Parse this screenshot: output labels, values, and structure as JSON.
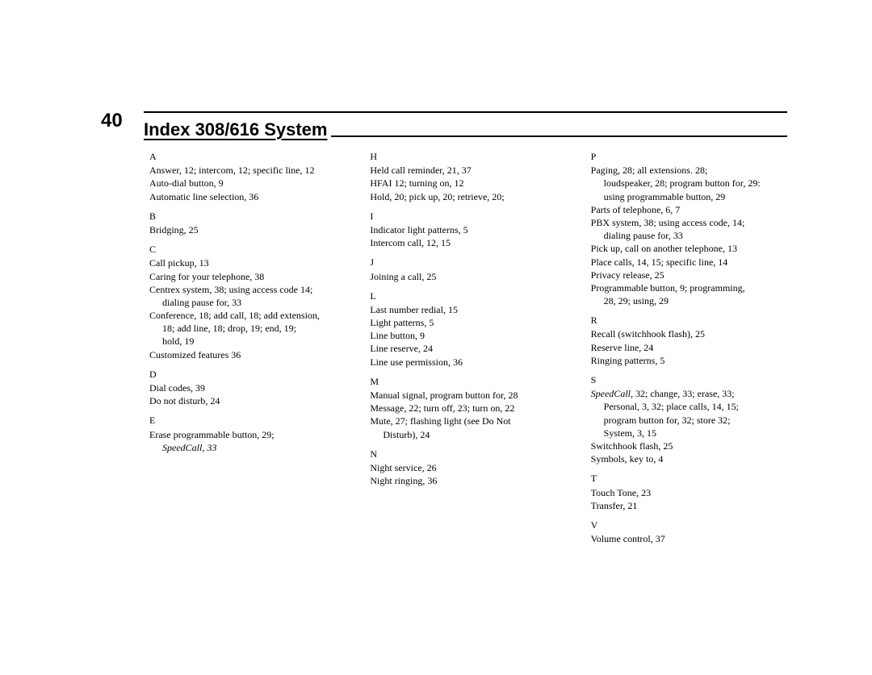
{
  "page_number": "40",
  "title": "Index 308/616 System",
  "columns": [
    {
      "sections": [
        {
          "letter": "A",
          "entries": [
            {
              "t": "Answer, 12; intercom, 12; specific line, 12"
            },
            {
              "t": "Auto-dial button, 9"
            },
            {
              "t": "Automatic line selection, 36"
            }
          ]
        },
        {
          "letter": "B",
          "entries": [
            {
              "t": "Bridging, 25"
            }
          ]
        },
        {
          "letter": "C",
          "entries": [
            {
              "t": "Call pickup, 13"
            },
            {
              "t": "Caring for your telephone, 38"
            },
            {
              "t": "Centrex system, 38; using access code 14;"
            },
            {
              "t": "dialing pause for, 33",
              "cont": true
            },
            {
              "t": "Conference, 18; add call, 18; add extension,"
            },
            {
              "t": "18; add line, 18; drop, 19; end, 19;",
              "cont": true
            },
            {
              "t": "hold, 19",
              "cont": true
            },
            {
              "t": "Customized features 36"
            }
          ]
        },
        {
          "letter": "D",
          "entries": [
            {
              "t": "Dial codes, 39"
            },
            {
              "t": "Do not disturb, 24"
            }
          ]
        },
        {
          "letter": "E",
          "entries": [
            {
              "t": "Erase programmable button, 29;"
            },
            {
              "t": "SpeedCall, 33",
              "cont": true,
              "italic": true
            }
          ]
        }
      ]
    },
    {
      "sections": [
        {
          "letter": "H",
          "entries": [
            {
              "t": "Held call reminder, 21, 37"
            },
            {
              "t": "HFAI 12; turning on, 12"
            },
            {
              "t": "Hold, 20; pick up, 20; retrieve, 20;"
            }
          ]
        },
        {
          "letter": "I",
          "entries": [
            {
              "t": "Indicator light patterns, 5"
            },
            {
              "t": "Intercom call, 12, 15"
            }
          ]
        },
        {
          "letter": "J",
          "entries": [
            {
              "t": "Joining a call, 25"
            }
          ]
        },
        {
          "letter": "L",
          "entries": [
            {
              "t": "Last number redial, 15"
            },
            {
              "t": "Light patterns, 5"
            },
            {
              "t": "Line button, 9"
            },
            {
              "t": "Line reserve, 24"
            },
            {
              "t": "Line use permission, 36"
            }
          ]
        },
        {
          "letter": "M",
          "entries": [
            {
              "t": "Manual signal, program button for, 28"
            },
            {
              "t": "Message, 22; turn off, 23; turn on, 22"
            },
            {
              "t": "Mute, 27; flashing light (see Do Not"
            },
            {
              "t": "Disturb), 24",
              "cont": true
            }
          ]
        },
        {
          "letter": "N",
          "entries": [
            {
              "t": "Night service, 26"
            },
            {
              "t": "Night ringing, 36"
            }
          ]
        }
      ]
    },
    {
      "sections": [
        {
          "letter": "P",
          "entries": [
            {
              "t": "Paging, 28; all extensions. 28;"
            },
            {
              "t": "loudspeaker, 28; program button for, 29:",
              "cont": true
            },
            {
              "t": "using programmable button, 29",
              "cont": true
            },
            {
              "t": "Parts of telephone, 6, 7"
            },
            {
              "t": "PBX system, 38; using access code, 14;"
            },
            {
              "t": "dialing pause for, 33",
              "cont": true
            },
            {
              "t": "Pick up, call on another telephone, 13"
            },
            {
              "t": "Place calls, 14, 15; specific line, 14"
            },
            {
              "t": "Privacy release, 25"
            },
            {
              "t": "Programmable button, 9; programming,"
            },
            {
              "t": "28, 29; using, 29",
              "cont": true
            }
          ]
        },
        {
          "letter": "R",
          "entries": [
            {
              "t": "Recall (switchhook flash), 25"
            },
            {
              "t": "Reserve line, 24"
            },
            {
              "t": "Ringing patterns, 5"
            }
          ]
        },
        {
          "letter": "S",
          "entries": [
            {
              "t": "SpeedCall, 32; change, 33; erase, 33;",
              "italicFirst": true
            },
            {
              "t": "Personal, 3, 32; place calls, 14, 15;",
              "cont": true
            },
            {
              "t": "program button for, 32; store 32;",
              "cont": true
            },
            {
              "t": "System, 3, 15",
              "cont": true
            },
            {
              "t": "Switchhook flash, 25"
            },
            {
              "t": "Symbols, key to, 4"
            }
          ]
        },
        {
          "letter": "T",
          "entries": [
            {
              "t": "Touch Tone, 23"
            },
            {
              "t": "Transfer, 21"
            }
          ]
        },
        {
          "letter": "V",
          "entries": [
            {
              "t": "Volume control, 37"
            }
          ]
        }
      ]
    }
  ]
}
